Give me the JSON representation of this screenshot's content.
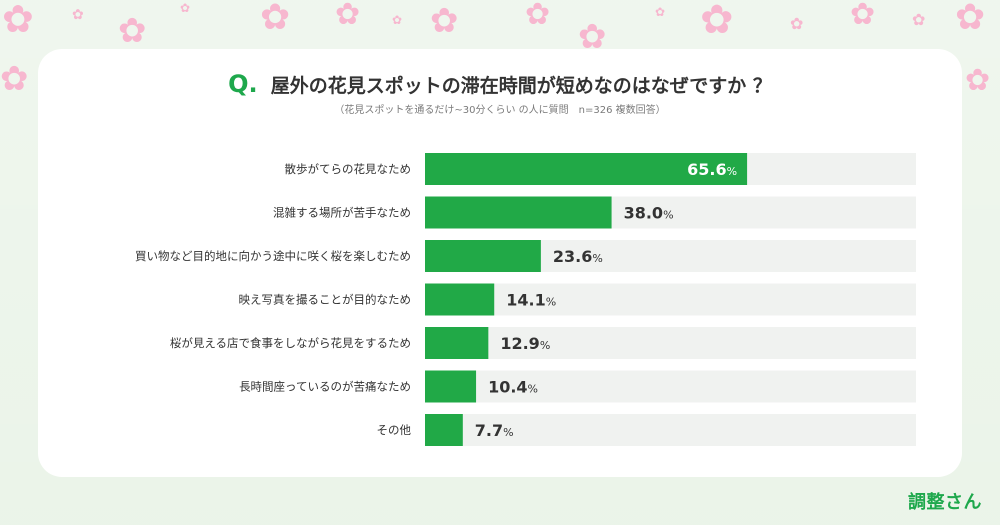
{
  "title": {
    "q_mark": "Q.",
    "text": "屋外の花見スポットの滞在時間が短めなのはなぜですか ？",
    "subtitle": "（花見スポットを通るだけ~30分くらい の人に質問　n=326 複数回答）"
  },
  "brand": {
    "logo": "調整さん"
  },
  "colors": {
    "bar": "#21a947",
    "track": "#f0f2f0",
    "accent": "#1ea84c",
    "blossom": "#f7b7cf"
  },
  "chart_data": {
    "type": "bar",
    "orientation": "horizontal",
    "categories": [
      "散歩がてらの花見なため",
      "混雑する場所が苦手なため",
      "買い物など目的地に向かう途中に咲く桜を楽しむため",
      "映え写真を撮ることが目的なため",
      "桜が見える店で食事をしながら花見をするため",
      "長時間座っているのが苦痛なため",
      "その他"
    ],
    "values": [
      65.6,
      38.0,
      23.6,
      14.1,
      12.9,
      10.4,
      7.7
    ],
    "value_labels": [
      "65.6",
      "38.0",
      "23.6",
      "14.1",
      "12.9",
      "10.4",
      "7.7"
    ],
    "unit": "%",
    "xlim": [
      0,
      100
    ],
    "grid": false,
    "legend": "none"
  }
}
